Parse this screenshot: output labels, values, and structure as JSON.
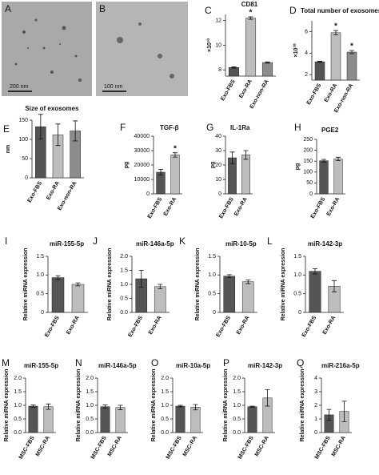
{
  "images": [
    {
      "panel": "A",
      "scale_label": "200 nm"
    },
    {
      "panel": "B",
      "scale_label": "100 nm"
    }
  ],
  "chart_data": [
    {
      "type": "bar",
      "panel": "C",
      "title": "CD81",
      "ylabel": "×10¹⁰",
      "categories": [
        "Exo-FBS",
        "Exo-RA",
        "Exo-non-RA"
      ],
      "values": [
        8.2,
        12.2,
        8.6
      ],
      "errors": [
        0.05,
        0.1,
        0.05
      ],
      "colors": [
        "#555555",
        "#bdbdbd",
        "#8c8c8c"
      ],
      "significance": [
        null,
        "*",
        null
      ],
      "ylim": [
        7.5,
        12.5
      ],
      "yticks": [
        8,
        10,
        12
      ]
    },
    {
      "type": "bar",
      "panel": "D",
      "title": "Total number of exosomes",
      "ylabel": "×10¹⁰",
      "categories": [
        "Exo-FBS",
        "Exo-RA",
        "Exo-non-RA"
      ],
      "values": [
        3.2,
        5.9,
        4.1
      ],
      "errors": [
        0.05,
        0.2,
        0.15
      ],
      "colors": [
        "#555555",
        "#bdbdbd",
        "#8c8c8c"
      ],
      "significance": [
        null,
        "*",
        "*"
      ],
      "ylim": [
        1.5,
        7
      ],
      "yticks": [
        2,
        4,
        6
      ]
    },
    {
      "type": "bar",
      "panel": "E",
      "title": "Size of exosomes",
      "ylabel": "nm",
      "categories": [
        "Exo-FBS",
        "Exo-RA",
        "Exo-non-RA"
      ],
      "values": [
        133,
        112,
        122
      ],
      "errors": [
        32,
        28,
        26
      ],
      "colors": [
        "#555555",
        "#bdbdbd",
        "#8c8c8c"
      ],
      "ylim": [
        0,
        150
      ],
      "yticks": [
        0,
        50,
        100,
        150
      ]
    },
    {
      "type": "bar",
      "panel": "F",
      "title": "TGF-β",
      "ylabel": "pg",
      "categories": [
        "Exo-FBS",
        "Exo-RA"
      ],
      "values": [
        15000,
        27000
      ],
      "errors": [
        2000,
        1500
      ],
      "colors": [
        "#555555",
        "#bdbdbd"
      ],
      "significance": [
        null,
        "*"
      ],
      "ylim": [
        0,
        40000
      ],
      "yticks": [
        0,
        10000,
        20000,
        30000,
        40000
      ]
    },
    {
      "type": "bar",
      "panel": "G",
      "title": "IL-1Ra",
      "ylabel": "pg",
      "categories": [
        "Exo-FBS",
        "Exo-RA"
      ],
      "values": [
        25,
        27
      ],
      "errors": [
        4,
        3
      ],
      "colors": [
        "#555555",
        "#bdbdbd"
      ],
      "ylim": [
        0,
        40
      ],
      "yticks": [
        0,
        10,
        20,
        30,
        40
      ]
    },
    {
      "type": "bar",
      "panel": "H",
      "title": "PGE2",
      "ylabel": "pg",
      "categories": [
        "Exo-FBS",
        "Exo-RA"
      ],
      "values": [
        152,
        160
      ],
      "errors": [
        6,
        8
      ],
      "colors": [
        "#555555",
        "#bdbdbd"
      ],
      "ylim": [
        0,
        250
      ],
      "yticks": [
        0,
        50,
        100,
        150,
        200,
        250
      ]
    },
    {
      "type": "bar",
      "panel": "I",
      "title": "miR-155-5p",
      "ylabel": "Relative miRNA expression",
      "categories": [
        "Exo-FBS",
        "Exo-RA"
      ],
      "values": [
        0.93,
        0.75
      ],
      "errors": [
        0.05,
        0.04
      ],
      "colors": [
        "#555555",
        "#bdbdbd"
      ],
      "ylim": [
        0,
        1.5
      ],
      "yticks": [
        0,
        0.5,
        {
          "value": 1,
          "label": "1.0"
        },
        1.5
      ]
    },
    {
      "type": "bar",
      "panel": "J",
      "title": "miR-146a-5p",
      "ylabel": "Relative miRNA expression",
      "categories": [
        "Exo-FBS",
        "Exo-RA"
      ],
      "values": [
        1.2,
        0.92
      ],
      "errors": [
        0.3,
        0.08
      ],
      "colors": [
        "#555555",
        "#bdbdbd"
      ],
      "ylim": [
        0,
        2
      ],
      "yticks": [
        {
          "value": 0,
          "label": "0.0"
        },
        0.5,
        {
          "value": 1,
          "label": "1.0"
        },
        1.5,
        {
          "value": 2,
          "label": "2.0"
        }
      ]
    },
    {
      "type": "bar",
      "panel": "K",
      "title": "miR-10-5p",
      "ylabel": "Relative miRNA expression",
      "categories": [
        "Exo-FBS",
        "Exo-RA"
      ],
      "values": [
        0.97,
        0.82
      ],
      "errors": [
        0.04,
        0.05
      ],
      "colors": [
        "#555555",
        "#bdbdbd"
      ],
      "ylim": [
        0,
        1.5
      ],
      "yticks": [
        0,
        0.5,
        {
          "value": 1,
          "label": "1.0"
        },
        1.5
      ]
    },
    {
      "type": "bar",
      "panel": "L",
      "title": "miR-142-3p",
      "ylabel": "Relative miRNA expression",
      "categories": [
        "Exo-FBS",
        "Exo-RA"
      ],
      "values": [
        1.1,
        0.7
      ],
      "errors": [
        0.07,
        0.15
      ],
      "colors": [
        "#555555",
        "#bdbdbd"
      ],
      "ylim": [
        0,
        1.5
      ],
      "yticks": [
        0,
        0.5,
        {
          "value": 1,
          "label": "1.0"
        },
        1.5
      ]
    },
    {
      "type": "bar",
      "panel": "M",
      "title": "miR-155-5p",
      "ylabel": "Relative miRNA expression",
      "categories": [
        "MSC-FBS",
        "MSC-RA"
      ],
      "values": [
        0.97,
        0.95
      ],
      "errors": [
        0.04,
        0.1
      ],
      "colors": [
        "#555555",
        "#bdbdbd"
      ],
      "ylim": [
        0,
        2
      ],
      "yticks": [
        {
          "value": 0,
          "label": "0.0"
        },
        0.5,
        {
          "value": 1,
          "label": "1.0"
        },
        1.5,
        {
          "value": 2,
          "label": "2.0"
        }
      ]
    },
    {
      "type": "bar",
      "panel": "N",
      "title": "miR-146a-5p",
      "ylabel": "Relative miRNA expression",
      "categories": [
        "MSC-FBS",
        "MSC-RA"
      ],
      "values": [
        0.95,
        0.92
      ],
      "errors": [
        0.06,
        0.08
      ],
      "colors": [
        "#555555",
        "#bdbdbd"
      ],
      "ylim": [
        0,
        2
      ],
      "yticks": [
        {
          "value": 0,
          "label": "0.0"
        },
        0.5,
        {
          "value": 1,
          "label": "1.0"
        },
        1.5,
        {
          "value": 2,
          "label": "2.0"
        }
      ]
    },
    {
      "type": "bar",
      "panel": "O",
      "title": "miR-10a-5p",
      "ylabel": "Relative miRNA expression",
      "categories": [
        "MSC-FBS",
        "MSC-RA"
      ],
      "values": [
        0.97,
        0.93
      ],
      "errors": [
        0.03,
        0.1
      ],
      "colors": [
        "#555555",
        "#bdbdbd"
      ],
      "ylim": [
        0,
        2
      ],
      "yticks": [
        {
          "value": 0,
          "label": "0.0"
        },
        0.5,
        {
          "value": 1,
          "label": "1.0"
        },
        1.5,
        {
          "value": 2,
          "label": "2.0"
        }
      ]
    },
    {
      "type": "bar",
      "panel": "P",
      "title": "miR-142-3p",
      "ylabel": "Relative miRNA expression",
      "categories": [
        "MSC-FBS",
        "MSC-RA"
      ],
      "values": [
        0.95,
        1.27
      ],
      "errors": [
        0.02,
        0.3
      ],
      "colors": [
        "#555555",
        "#bdbdbd"
      ],
      "ylim": [
        0,
        2
      ],
      "yticks": [
        {
          "value": 0,
          "label": "0.0"
        },
        0.5,
        {
          "value": 1,
          "label": "1.0"
        },
        1.5,
        {
          "value": 2,
          "label": "2.0"
        }
      ]
    },
    {
      "type": "bar",
      "panel": "Q",
      "title": "miR-216a-5p",
      "ylabel": "Relative miRNA expression",
      "categories": [
        "MSC-FBS",
        "MSC-RA"
      ],
      "values": [
        1.3,
        1.55
      ],
      "errors": [
        0.4,
        0.75
      ],
      "colors": [
        "#555555",
        "#bdbdbd"
      ],
      "ylim": [
        0,
        4
      ],
      "yticks": [
        0,
        1,
        2,
        3,
        4
      ]
    }
  ]
}
